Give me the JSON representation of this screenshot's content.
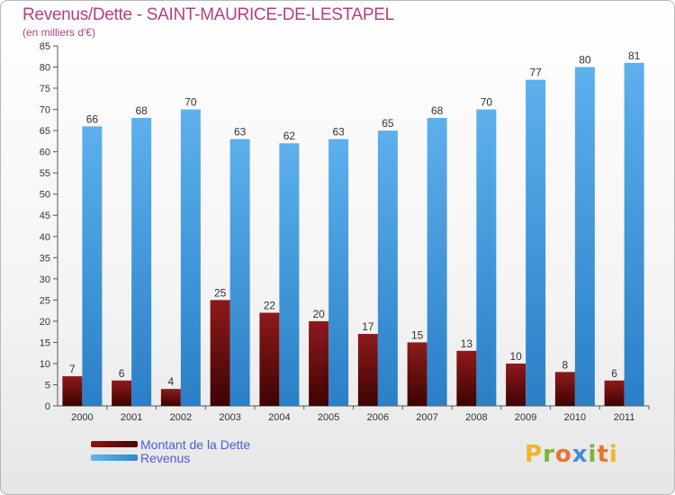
{
  "title": "Revenus/Dette - SAINT-MAURICE-DE-LESTAPEL",
  "subtitle": "(en milliers d'€)",
  "legend": {
    "debt_label": "Montant de la Dette",
    "revenue_label": "Revenus"
  },
  "logo": {
    "text": "Proxiti"
  },
  "colors": {
    "debt": "#6b0a0a",
    "revenue": "#3d9ae0",
    "title": "#b5407b",
    "legend_text": "#4b5ed6"
  },
  "chart_data": {
    "type": "bar",
    "categories": [
      "2000",
      "2001",
      "2002",
      "2003",
      "2004",
      "2005",
      "2006",
      "2007",
      "2008",
      "2009",
      "2010",
      "2011"
    ],
    "series": [
      {
        "name": "Montant de la Dette",
        "values": [
          7,
          6,
          4,
          25,
          22,
          20,
          17,
          15,
          13,
          10,
          8,
          6
        ]
      },
      {
        "name": "Revenus",
        "values": [
          66,
          68,
          70,
          63,
          62,
          63,
          65,
          68,
          70,
          77,
          80,
          81
        ]
      }
    ],
    "ylim": [
      0,
      85
    ],
    "yticks": [
      0,
      5,
      10,
      15,
      20,
      25,
      30,
      35,
      40,
      45,
      50,
      55,
      60,
      65,
      70,
      75,
      80,
      85
    ],
    "grid": false,
    "legend_position": "bottom-left"
  }
}
